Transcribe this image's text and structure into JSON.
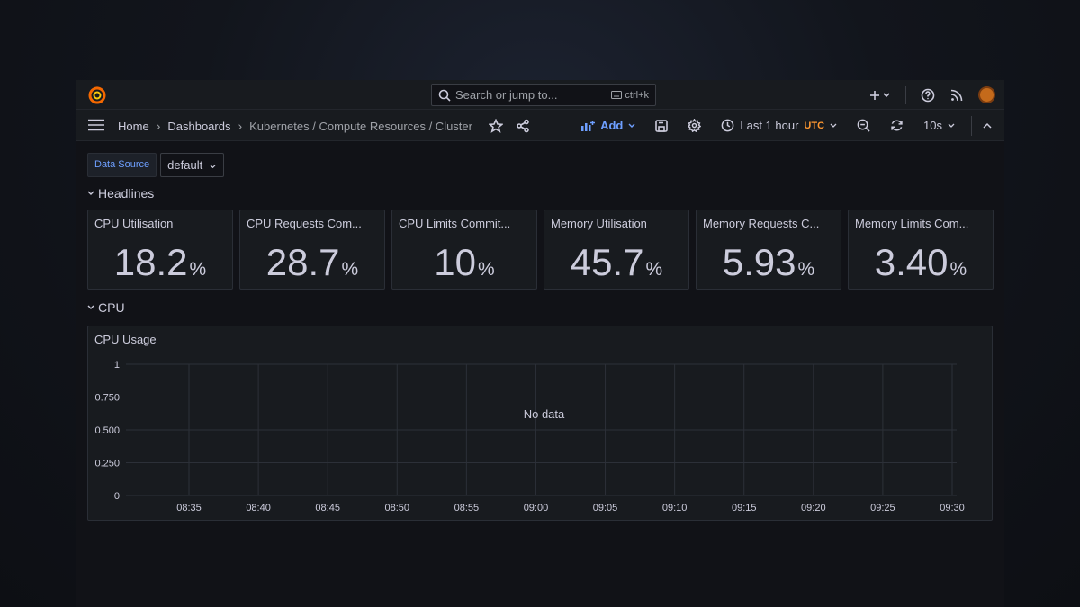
{
  "topbar": {
    "search_placeholder": "Search or jump to...",
    "search_shortcut": "ctrl+k"
  },
  "navbar": {
    "breadcrumbs": [
      "Home",
      "Dashboards",
      "Kubernetes / Compute Resources / Cluster"
    ],
    "add_label": "Add",
    "time_range": "Last 1 hour",
    "timezone": "UTC",
    "refresh_interval": "10s"
  },
  "variables": {
    "datasource_label": "Data Source",
    "datasource_value": "default"
  },
  "rows": {
    "headlines": "Headlines",
    "cpu": "CPU"
  },
  "stats": [
    {
      "title": "CPU Utilisation",
      "value": "18.2",
      "unit": "%"
    },
    {
      "title": "CPU Requests Com...",
      "value": "28.7",
      "unit": "%"
    },
    {
      "title": "CPU Limits Commit...",
      "value": "10",
      "unit": "%"
    },
    {
      "title": "Memory Utilisation",
      "value": "45.7",
      "unit": "%"
    },
    {
      "title": "Memory Requests C...",
      "value": "5.93",
      "unit": "%"
    },
    {
      "title": "Memory Limits Com...",
      "value": "3.40",
      "unit": "%"
    }
  ],
  "colors": {
    "background": "#111217",
    "panel": "#181b1f",
    "accent_blue": "#6e9fff",
    "accent_orange": "#ff9830",
    "text": "#ccccdc"
  },
  "chart_data": {
    "type": "line",
    "title": "CPU Usage",
    "message": "No data",
    "x": [
      "08:35",
      "08:40",
      "08:45",
      "08:50",
      "08:55",
      "09:00",
      "09:05",
      "09:10",
      "09:15",
      "09:20",
      "09:25",
      "09:30"
    ],
    "y_ticks": [
      "1",
      "0.750",
      "0.500",
      "0.250",
      "0"
    ],
    "ylim": [
      0,
      1
    ],
    "series": [],
    "grid": true
  }
}
